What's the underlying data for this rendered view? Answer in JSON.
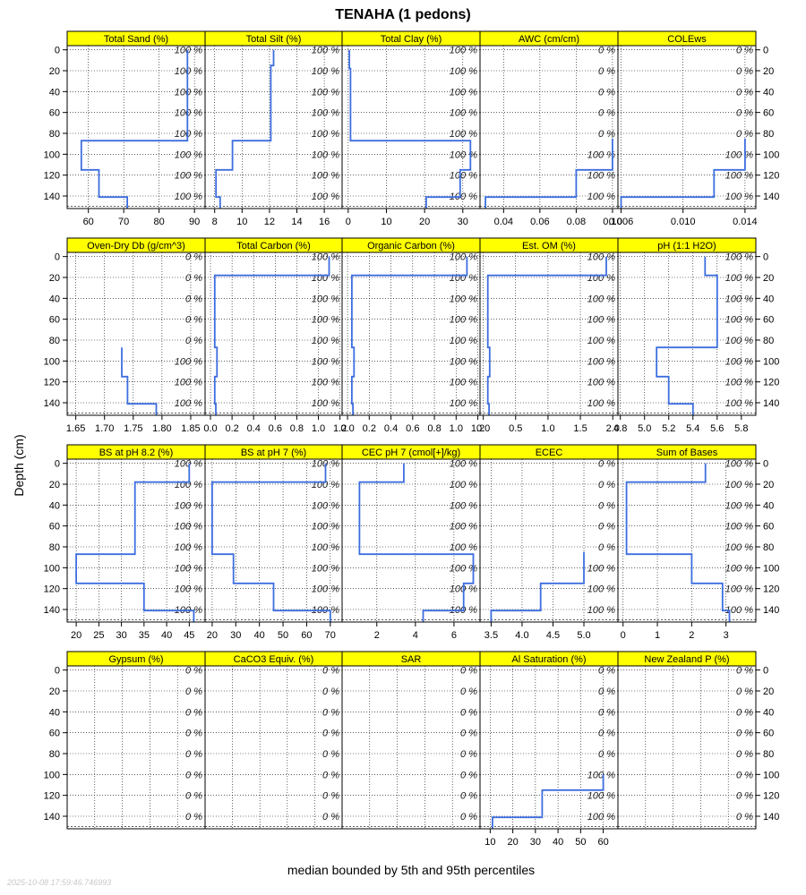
{
  "title": "TENAHA (1 pedons)",
  "ylabel": "Depth (cm)",
  "xlabel": "median bounded by 5th and 95th percentiles",
  "timestamp": "2025-10-08 17:59:46.746993",
  "colors": {
    "strip": "#ffff00",
    "line": "#3d6ee0",
    "frame": "#000000",
    "grid": "#000000"
  },
  "depth_ticks": [
    0,
    20,
    40,
    60,
    80,
    100,
    120,
    140
  ],
  "depth_range": [
    152,
    -4
  ],
  "chart_data": [
    {
      "type": "line",
      "title": "Total Sand (%)",
      "xlim": [
        54,
        93
      ],
      "xticks": [
        60,
        70,
        80,
        90
      ],
      "pct_labels": [
        "100 %",
        "100 %",
        "100 %",
        "100 %",
        "100 %",
        "100 %",
        "100 %",
        "100 %"
      ],
      "series": [
        {
          "name": "",
          "values": [
            [
              88,
              0
            ],
            [
              88,
              87
            ],
            [
              58,
              87
            ],
            [
              58,
              115
            ],
            [
              63,
              115
            ],
            [
              63,
              141
            ],
            [
              71,
              141
            ],
            [
              71,
              152
            ]
          ]
        }
      ]
    },
    {
      "type": "line",
      "title": "Total Silt (%)",
      "xlim": [
        7.3,
        17.3
      ],
      "xticks": [
        8,
        10,
        12,
        14,
        16
      ],
      "pct_labels": [
        "100 %",
        "100 %",
        "100 %",
        "100 %",
        "100 %",
        "100 %",
        "100 %",
        "100 %"
      ],
      "series": [
        {
          "name": "",
          "values": [
            [
              12.3,
              0
            ],
            [
              12.3,
              15
            ],
            [
              12.1,
              15
            ],
            [
              12.1,
              87
            ],
            [
              9.3,
              87
            ],
            [
              9.3,
              115
            ],
            [
              8.1,
              115
            ],
            [
              8.1,
              141
            ],
            [
              8.4,
              141
            ],
            [
              8.4,
              152
            ]
          ]
        }
      ]
    },
    {
      "type": "line",
      "title": "Total Clay (%)",
      "xlim": [
        -1.6,
        34.5
      ],
      "xticks": [
        0,
        10,
        20,
        30
      ],
      "pct_labels": [
        "100 %",
        "100 %",
        "100 %",
        "100 %",
        "100 %",
        "100 %",
        "100 %",
        "100 %"
      ],
      "series": [
        {
          "name": "",
          "values": [
            [
              0.3,
              0
            ],
            [
              0.3,
              18
            ],
            [
              0.6,
              18
            ],
            [
              0.6,
              87
            ],
            [
              32,
              87
            ],
            [
              32,
              115
            ],
            [
              29.3,
              115
            ],
            [
              29.3,
              141
            ],
            [
              20.4,
              141
            ],
            [
              20.4,
              152
            ]
          ]
        }
      ]
    },
    {
      "type": "line",
      "title": "AWC (cm/cm)",
      "xlim": [
        0.027,
        0.103
      ],
      "xticks": [
        0.04,
        0.06,
        0.08,
        0.1
      ],
      "xticklabels": [
        "0.04",
        "0.06",
        "0.08",
        "0.10"
      ],
      "pct_labels": [
        "0 %",
        "0 %",
        "0 %",
        "0 %",
        "0 %",
        "100 %",
        "100 %",
        "100 %"
      ],
      "series": [
        {
          "name": "",
          "values": [
            [
              0.1,
              85
            ],
            [
              0.1,
              115
            ],
            [
              0.08,
              115
            ],
            [
              0.08,
              141
            ],
            [
              0.03,
              141
            ],
            [
              0.03,
              152
            ]
          ]
        }
      ]
    },
    {
      "type": "line",
      "title": "COLEws",
      "xlim": [
        0.0058,
        0.0147
      ],
      "xticks": [
        0.006,
        0.01,
        0.014
      ],
      "xticklabels": [
        "0.006",
        "0.010",
        "0.014"
      ],
      "pct_labels": [
        "0 %",
        "0 %",
        "0 %",
        "0 %",
        "0 %",
        "100 %",
        "100 %",
        "100 %"
      ],
      "series": [
        {
          "name": "",
          "values": [
            [
              0.014,
              85
            ],
            [
              0.014,
              115
            ],
            [
              0.012,
              115
            ],
            [
              0.012,
              141
            ],
            [
              0.006,
              141
            ],
            [
              0.006,
              152
            ]
          ]
        }
      ]
    },
    {
      "type": "line",
      "title": "Oven-Dry Db (g/cm^3)",
      "xlim": [
        1.635,
        1.875
      ],
      "xticks": [
        1.65,
        1.7,
        1.75,
        1.8,
        1.85
      ],
      "xticklabels": [
        "1.65",
        "1.70",
        "1.75",
        "1.80",
        "1.85"
      ],
      "pct_labels": [
        "0 %",
        "0 %",
        "0 %",
        "0 %",
        "0 %",
        "100 %",
        "100 %",
        "100 %"
      ],
      "series": [
        {
          "name": "",
          "values": [
            [
              1.73,
              87
            ],
            [
              1.73,
              115
            ],
            [
              1.74,
              115
            ],
            [
              1.74,
              141
            ],
            [
              1.79,
              141
            ],
            [
              1.79,
              152
            ]
          ]
        }
      ]
    },
    {
      "type": "line",
      "title": "Total Carbon (%)",
      "xlim": [
        -0.05,
        1.22
      ],
      "xticks": [
        0,
        0.2,
        0.4,
        0.6,
        0.8,
        1,
        1.2
      ],
      "xticklabels": [
        "0.0",
        "0.2",
        "0.4",
        "0.6",
        "0.8",
        "1.0",
        "1.2"
      ],
      "pct_labels": [
        "100 %",
        "100 %",
        "100 %",
        "100 %",
        "100 %",
        "100 %",
        "100 %",
        "100 %"
      ],
      "series": [
        {
          "name": "",
          "values": [
            [
              1.1,
              0
            ],
            [
              1.1,
              18
            ],
            [
              0.04,
              18
            ],
            [
              0.04,
              87
            ],
            [
              0.06,
              87
            ],
            [
              0.06,
              115
            ],
            [
              0.04,
              115
            ],
            [
              0.04,
              141
            ],
            [
              0.05,
              141
            ],
            [
              0.05,
              152
            ]
          ]
        }
      ]
    },
    {
      "type": "line",
      "title": "Organic Carbon (%)",
      "xlim": [
        -0.05,
        1.22
      ],
      "xticks": [
        0,
        0.2,
        0.4,
        0.6,
        0.8,
        1,
        1.2
      ],
      "xticklabels": [
        "0.0",
        "0.2",
        "0.4",
        "0.6",
        "0.8",
        "1.0",
        "1.2"
      ],
      "pct_labels": [
        "100 %",
        "100 %",
        "100 %",
        "100 %",
        "100 %",
        "100 %",
        "100 %",
        "100 %"
      ],
      "series": [
        {
          "name": "",
          "values": [
            [
              1.1,
              0
            ],
            [
              1.1,
              18
            ],
            [
              0.04,
              18
            ],
            [
              0.04,
              87
            ],
            [
              0.06,
              87
            ],
            [
              0.06,
              115
            ],
            [
              0.04,
              115
            ],
            [
              0.04,
              141
            ],
            [
              0.05,
              141
            ],
            [
              0.05,
              152
            ]
          ]
        }
      ]
    },
    {
      "type": "line",
      "title": "Est. OM (%)",
      "xlim": [
        -0.05,
        2.08
      ],
      "xticks": [
        0,
        0.5,
        1,
        1.5,
        2
      ],
      "xticklabels": [
        "0.0",
        "0.5",
        "1.0",
        "1.5",
        "2.0"
      ],
      "pct_labels": [
        "100 %",
        "100 %",
        "100 %",
        "100 %",
        "100 %",
        "100 %",
        "100 %",
        "100 %"
      ],
      "series": [
        {
          "name": "",
          "values": [
            [
              1.9,
              0
            ],
            [
              1.9,
              18
            ],
            [
              0.07,
              18
            ],
            [
              0.07,
              87
            ],
            [
              0.1,
              87
            ],
            [
              0.1,
              115
            ],
            [
              0.07,
              115
            ],
            [
              0.07,
              141
            ],
            [
              0.09,
              141
            ],
            [
              0.09,
              152
            ]
          ]
        }
      ]
    },
    {
      "type": "line",
      "title": "pH (1:1 H2O)",
      "xlim": [
        4.78,
        5.92
      ],
      "xticks": [
        4.8,
        5,
        5.2,
        5.4,
        5.6,
        5.8
      ],
      "xticklabels": [
        "4.8",
        "5.0",
        "5.2",
        "5.4",
        "5.6",
        "5.8"
      ],
      "pct_labels": [
        "100 %",
        "100 %",
        "100 %",
        "100 %",
        "100 %",
        "100 %",
        "100 %",
        "100 %"
      ],
      "series": [
        {
          "name": "",
          "values": [
            [
              5.5,
              0
            ],
            [
              5.5,
              18
            ],
            [
              5.6,
              18
            ],
            [
              5.6,
              87
            ],
            [
              5.1,
              87
            ],
            [
              5.1,
              115
            ],
            [
              5.2,
              115
            ],
            [
              5.2,
              141
            ],
            [
              5.4,
              141
            ],
            [
              5.4,
              152
            ]
          ]
        }
      ]
    },
    {
      "type": "line",
      "title": "BS at pH 8.2 (%)",
      "xlim": [
        18,
        48.5
      ],
      "xticks": [
        20,
        25,
        30,
        35,
        40,
        45
      ],
      "pct_labels": [
        "100 %",
        "100 %",
        "100 %",
        "100 %",
        "100 %",
        "100 %",
        "100 %",
        "100 %"
      ],
      "series": [
        {
          "name": "",
          "values": [
            [
              45,
              0
            ],
            [
              45,
              18
            ],
            [
              33,
              18
            ],
            [
              33,
              87
            ],
            [
              20,
              87
            ],
            [
              20,
              115
            ],
            [
              35,
              115
            ],
            [
              35,
              141
            ],
            [
              46,
              141
            ],
            [
              46,
              152
            ]
          ]
        }
      ]
    },
    {
      "type": "line",
      "title": "BS at pH 7 (%)",
      "xlim": [
        17,
        75
      ],
      "xticks": [
        20,
        30,
        40,
        50,
        60,
        70
      ],
      "pct_labels": [
        "100 %",
        "100 %",
        "100 %",
        "100 %",
        "100 %",
        "100 %",
        "100 %",
        "100 %"
      ],
      "series": [
        {
          "name": "",
          "values": [
            [
              68,
              0
            ],
            [
              68,
              18
            ],
            [
              20,
              18
            ],
            [
              20,
              87
            ],
            [
              29,
              87
            ],
            [
              29,
              115
            ],
            [
              46,
              115
            ],
            [
              46,
              141
            ],
            [
              70,
              141
            ],
            [
              70,
              152
            ]
          ]
        }
      ]
    },
    {
      "type": "line",
      "title": "CEC pH 7 (cmol[+]/kg)",
      "xlim": [
        0.2,
        7.35
      ],
      "xticks": [
        2,
        4,
        6
      ],
      "pct_labels": [
        "100 %",
        "100 %",
        "100 %",
        "100 %",
        "100 %",
        "100 %",
        "100 %",
        "100 %"
      ],
      "series": [
        {
          "name": "",
          "values": [
            [
              3.4,
              0
            ],
            [
              3.4,
              18
            ],
            [
              1.1,
              18
            ],
            [
              1.1,
              87
            ],
            [
              7,
              87
            ],
            [
              7,
              115
            ],
            [
              6.5,
              115
            ],
            [
              6.5,
              141
            ],
            [
              4.4,
              141
            ],
            [
              4.4,
              152
            ]
          ]
        }
      ]
    },
    {
      "type": "line",
      "title": "ECEC",
      "xlim": [
        3.32,
        5.55
      ],
      "xticks": [
        3.5,
        4,
        4.5,
        5
      ],
      "xticklabels": [
        "3.5",
        "4.0",
        "4.5",
        "5.0"
      ],
      "pct_labels": [
        "0 %",
        "0 %",
        "0 %",
        "0 %",
        "0 %",
        "100 %",
        "100 %",
        "100 %"
      ],
      "series": [
        {
          "name": "",
          "values": [
            [
              5,
              85
            ],
            [
              5,
              115
            ],
            [
              4.3,
              115
            ],
            [
              4.3,
              141
            ],
            [
              3.5,
              141
            ],
            [
              3.5,
              152
            ]
          ]
        }
      ]
    },
    {
      "type": "line",
      "title": "Sum of Bases",
      "xlim": [
        -0.15,
        3.87
      ],
      "xticks": [
        0,
        1,
        2,
        3
      ],
      "pct_labels": [
        "100 %",
        "100 %",
        "100 %",
        "100 %",
        "100 %",
        "100 %",
        "100 %",
        "100 %"
      ],
      "series": [
        {
          "name": "",
          "values": [
            [
              2.4,
              0
            ],
            [
              2.4,
              18
            ],
            [
              0.1,
              18
            ],
            [
              0.1,
              87
            ],
            [
              2,
              87
            ],
            [
              2,
              115
            ],
            [
              2.9,
              115
            ],
            [
              2.9,
              141
            ],
            [
              3.1,
              141
            ],
            [
              3.1,
              152
            ]
          ]
        }
      ]
    },
    {
      "type": "line",
      "title": "Gypsum (%)",
      "xlim": [
        0,
        1
      ],
      "xticks": [],
      "pct_labels": [
        "0 %",
        "0 %",
        "0 %",
        "0 %",
        "0 %",
        "0 %",
        "0 %",
        "0 %"
      ],
      "series": []
    },
    {
      "type": "line",
      "title": "CaCO3 Equiv. (%)",
      "xlim": [
        0,
        1
      ],
      "xticks": [],
      "pct_labels": [
        "0 %",
        "0 %",
        "0 %",
        "0 %",
        "0 %",
        "0 %",
        "0 %",
        "0 %"
      ],
      "series": []
    },
    {
      "type": "line",
      "title": "SAR",
      "xlim": [
        0,
        1
      ],
      "xticks": [],
      "pct_labels": [
        "0 %",
        "0 %",
        "0 %",
        "0 %",
        "0 %",
        "0 %",
        "0 %",
        "0 %"
      ],
      "series": []
    },
    {
      "type": "line",
      "title": "Al Saturation (%)",
      "xlim": [
        5.5,
        66.5
      ],
      "xticks": [
        10,
        20,
        30,
        40,
        50,
        60
      ],
      "pct_labels": [
        "0 %",
        "0 %",
        "0 %",
        "0 %",
        "0 %",
        "100 %",
        "100 %",
        "100 %"
      ],
      "series": [
        {
          "name": "",
          "values": [
            [
              60,
              100
            ],
            [
              60,
              115
            ],
            [
              33,
              115
            ],
            [
              33,
              141
            ],
            [
              11,
              141
            ],
            [
              11,
              152
            ]
          ]
        }
      ]
    },
    {
      "type": "line",
      "title": "New Zealand P (%)",
      "xlim": [
        0,
        1
      ],
      "xticks": [],
      "pct_labels": [
        "0 %",
        "0 %",
        "0 %",
        "0 %",
        "0 %",
        "0 %",
        "0 %",
        "0 %"
      ],
      "series": []
    }
  ]
}
